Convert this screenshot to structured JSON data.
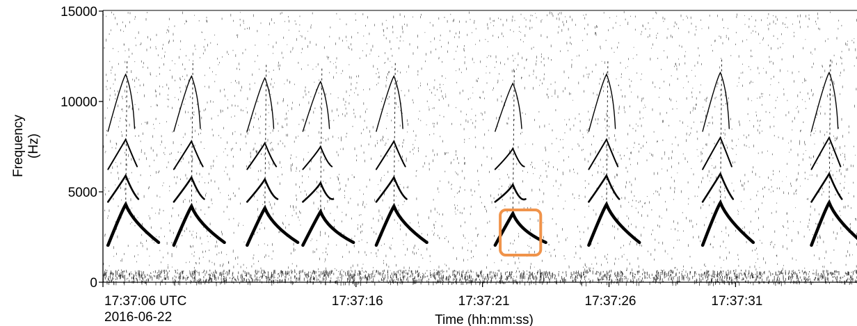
{
  "chart_data": {
    "type": "spectrogram",
    "xlabel": "Time (hh:mm:ss)",
    "ylabel_line1": "Frequency",
    "ylabel_line2": "(Hz)",
    "start_time_label": "17:37:06 UTC",
    "start_date_label": "2016-06-22",
    "x_ticks": [
      {
        "time": "17:37:06",
        "label": ""
      },
      {
        "time": "17:37:16",
        "label": "17:37:16"
      },
      {
        "time": "17:37:21",
        "label": "17:37:21"
      },
      {
        "time": "17:37:26",
        "label": "17:37:26"
      },
      {
        "time": "17:37:31",
        "label": "17:37:31"
      }
    ],
    "y_ticks": [
      0,
      5000,
      10000,
      15000
    ],
    "ylim": [
      0,
      15000
    ],
    "xlim": [
      "17:37:06",
      "17:37:35.8"
    ],
    "grid": false,
    "highlight": {
      "time_range": [
        "17:37:21.7",
        "17:37:23.3"
      ],
      "freq_range": [
        1500,
        4000
      ],
      "color": "#f0934a"
    },
    "calls": [
      {
        "t": "17:37:06.5",
        "peak_hz": 4300
      },
      {
        "t": "17:37:09.1",
        "peak_hz": 4200
      },
      {
        "t": "17:37:12.0",
        "peak_hz": 4100
      },
      {
        "t": "17:37:14.2",
        "peak_hz": 3900
      },
      {
        "t": "17:37:17.1",
        "peak_hz": 4200
      },
      {
        "t": "17:37:21.8",
        "peak_hz": 3800
      },
      {
        "t": "17:37:25.5",
        "peak_hz": 4300
      },
      {
        "t": "17:37:30.0",
        "peak_hz": 4400
      },
      {
        "t": "17:37:34.3",
        "peak_hz": 4400
      }
    ],
    "ink_color": "#000000"
  }
}
